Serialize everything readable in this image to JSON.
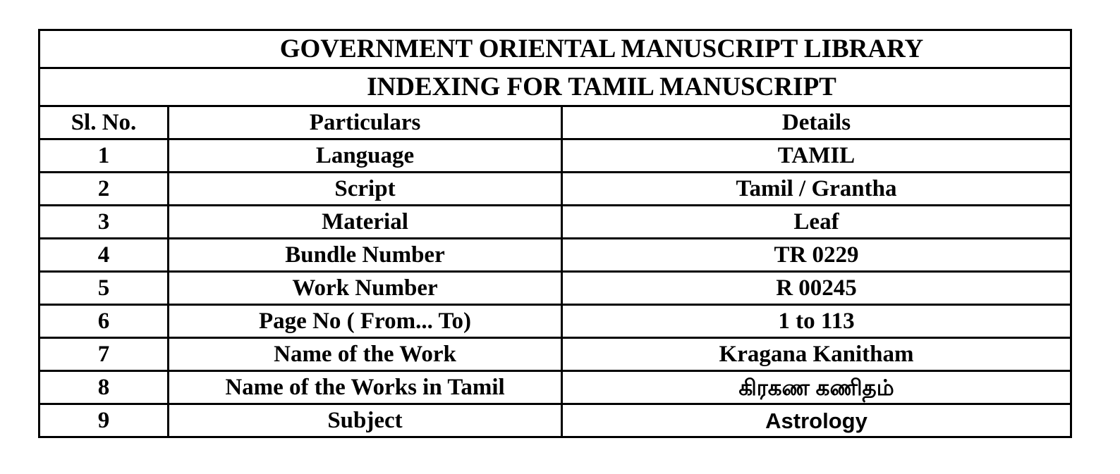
{
  "title": "GOVERNMENT ORIENTAL MANUSCRIPT LIBRARY",
  "subtitle": "INDEXING FOR TAMIL MANUSCRIPT",
  "headers": [
    "Sl. No.",
    "Particulars",
    "Details"
  ],
  "rows": [
    {
      "no": "1",
      "particular": "Language",
      "detail": "TAMIL"
    },
    {
      "no": "2",
      "particular": "Script",
      "detail": "Tamil / Grantha"
    },
    {
      "no": "3",
      "particular": "Material",
      "detail": "Leaf"
    },
    {
      "no": "4",
      "particular": "Bundle Number",
      "detail": "TR 0229"
    },
    {
      "no": "5",
      "particular": "Work Number",
      "detail": "R 00245"
    },
    {
      "no": "6",
      "particular": "Page No  ( From... To)",
      "detail": "1 to 113"
    },
    {
      "no": "7",
      "particular": "Name of the Work",
      "detail": "Kragana Kanitham"
    },
    {
      "no": "8",
      "particular": "Name of the Works in Tamil",
      "detail": "கிரகண  கணிதம்"
    },
    {
      "no": "9",
      "particular": "Subject",
      "detail": "Astrology"
    }
  ]
}
